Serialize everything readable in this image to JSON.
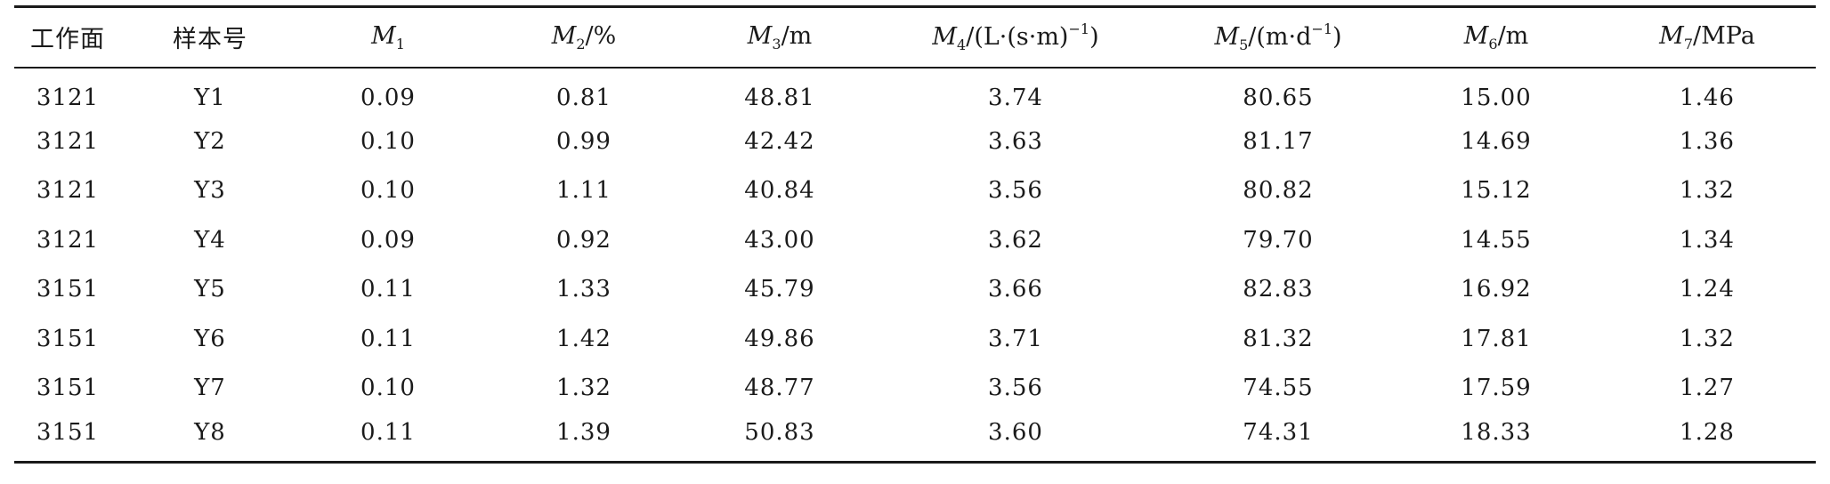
{
  "table": {
    "headers": {
      "face": "工作面",
      "sample": "样本号",
      "m1": {
        "var": "M",
        "sub": "1",
        "unit": ""
      },
      "m2": {
        "var": "M",
        "sub": "2",
        "unit": "/%"
      },
      "m3": {
        "var": "M",
        "sub": "3",
        "unit": "/m"
      },
      "m4": {
        "var": "M",
        "sub": "4",
        "unit": "/(L·(s·m)",
        "exp": "−1",
        "close": ")"
      },
      "m5": {
        "var": "M",
        "sub": "5",
        "unit": "/(m·d",
        "exp": "−1",
        "close": ")"
      },
      "m6": {
        "var": "M",
        "sub": "6",
        "unit": "/m"
      },
      "m7": {
        "var": "M",
        "sub": "7",
        "unit": "/MPa"
      }
    },
    "rows": [
      [
        "3121",
        "Y1",
        "0.09",
        "0.81",
        "48.81",
        "3.74",
        "80.65",
        "15.00",
        "1.46"
      ],
      [
        "3121",
        "Y2",
        "0.10",
        "0.99",
        "42.42",
        "3.63",
        "81.17",
        "14.69",
        "1.36"
      ],
      [
        "3121",
        "Y3",
        "0.10",
        "1.11",
        "40.84",
        "3.56",
        "80.82",
        "15.12",
        "1.32"
      ],
      [
        "3121",
        "Y4",
        "0.09",
        "0.92",
        "43.00",
        "3.62",
        "79.70",
        "14.55",
        "1.34"
      ],
      [
        "3151",
        "Y5",
        "0.11",
        "1.33",
        "45.79",
        "3.66",
        "82.83",
        "16.92",
        "1.24"
      ],
      [
        "3151",
        "Y6",
        "0.11",
        "1.42",
        "49.86",
        "3.71",
        "81.32",
        "17.81",
        "1.32"
      ],
      [
        "3151",
        "Y7",
        "0.10",
        "1.32",
        "48.77",
        "3.56",
        "74.55",
        "17.59",
        "1.27"
      ],
      [
        "3151",
        "Y8",
        "0.11",
        "1.39",
        "50.83",
        "3.60",
        "74.31",
        "18.33",
        "1.28"
      ]
    ]
  }
}
